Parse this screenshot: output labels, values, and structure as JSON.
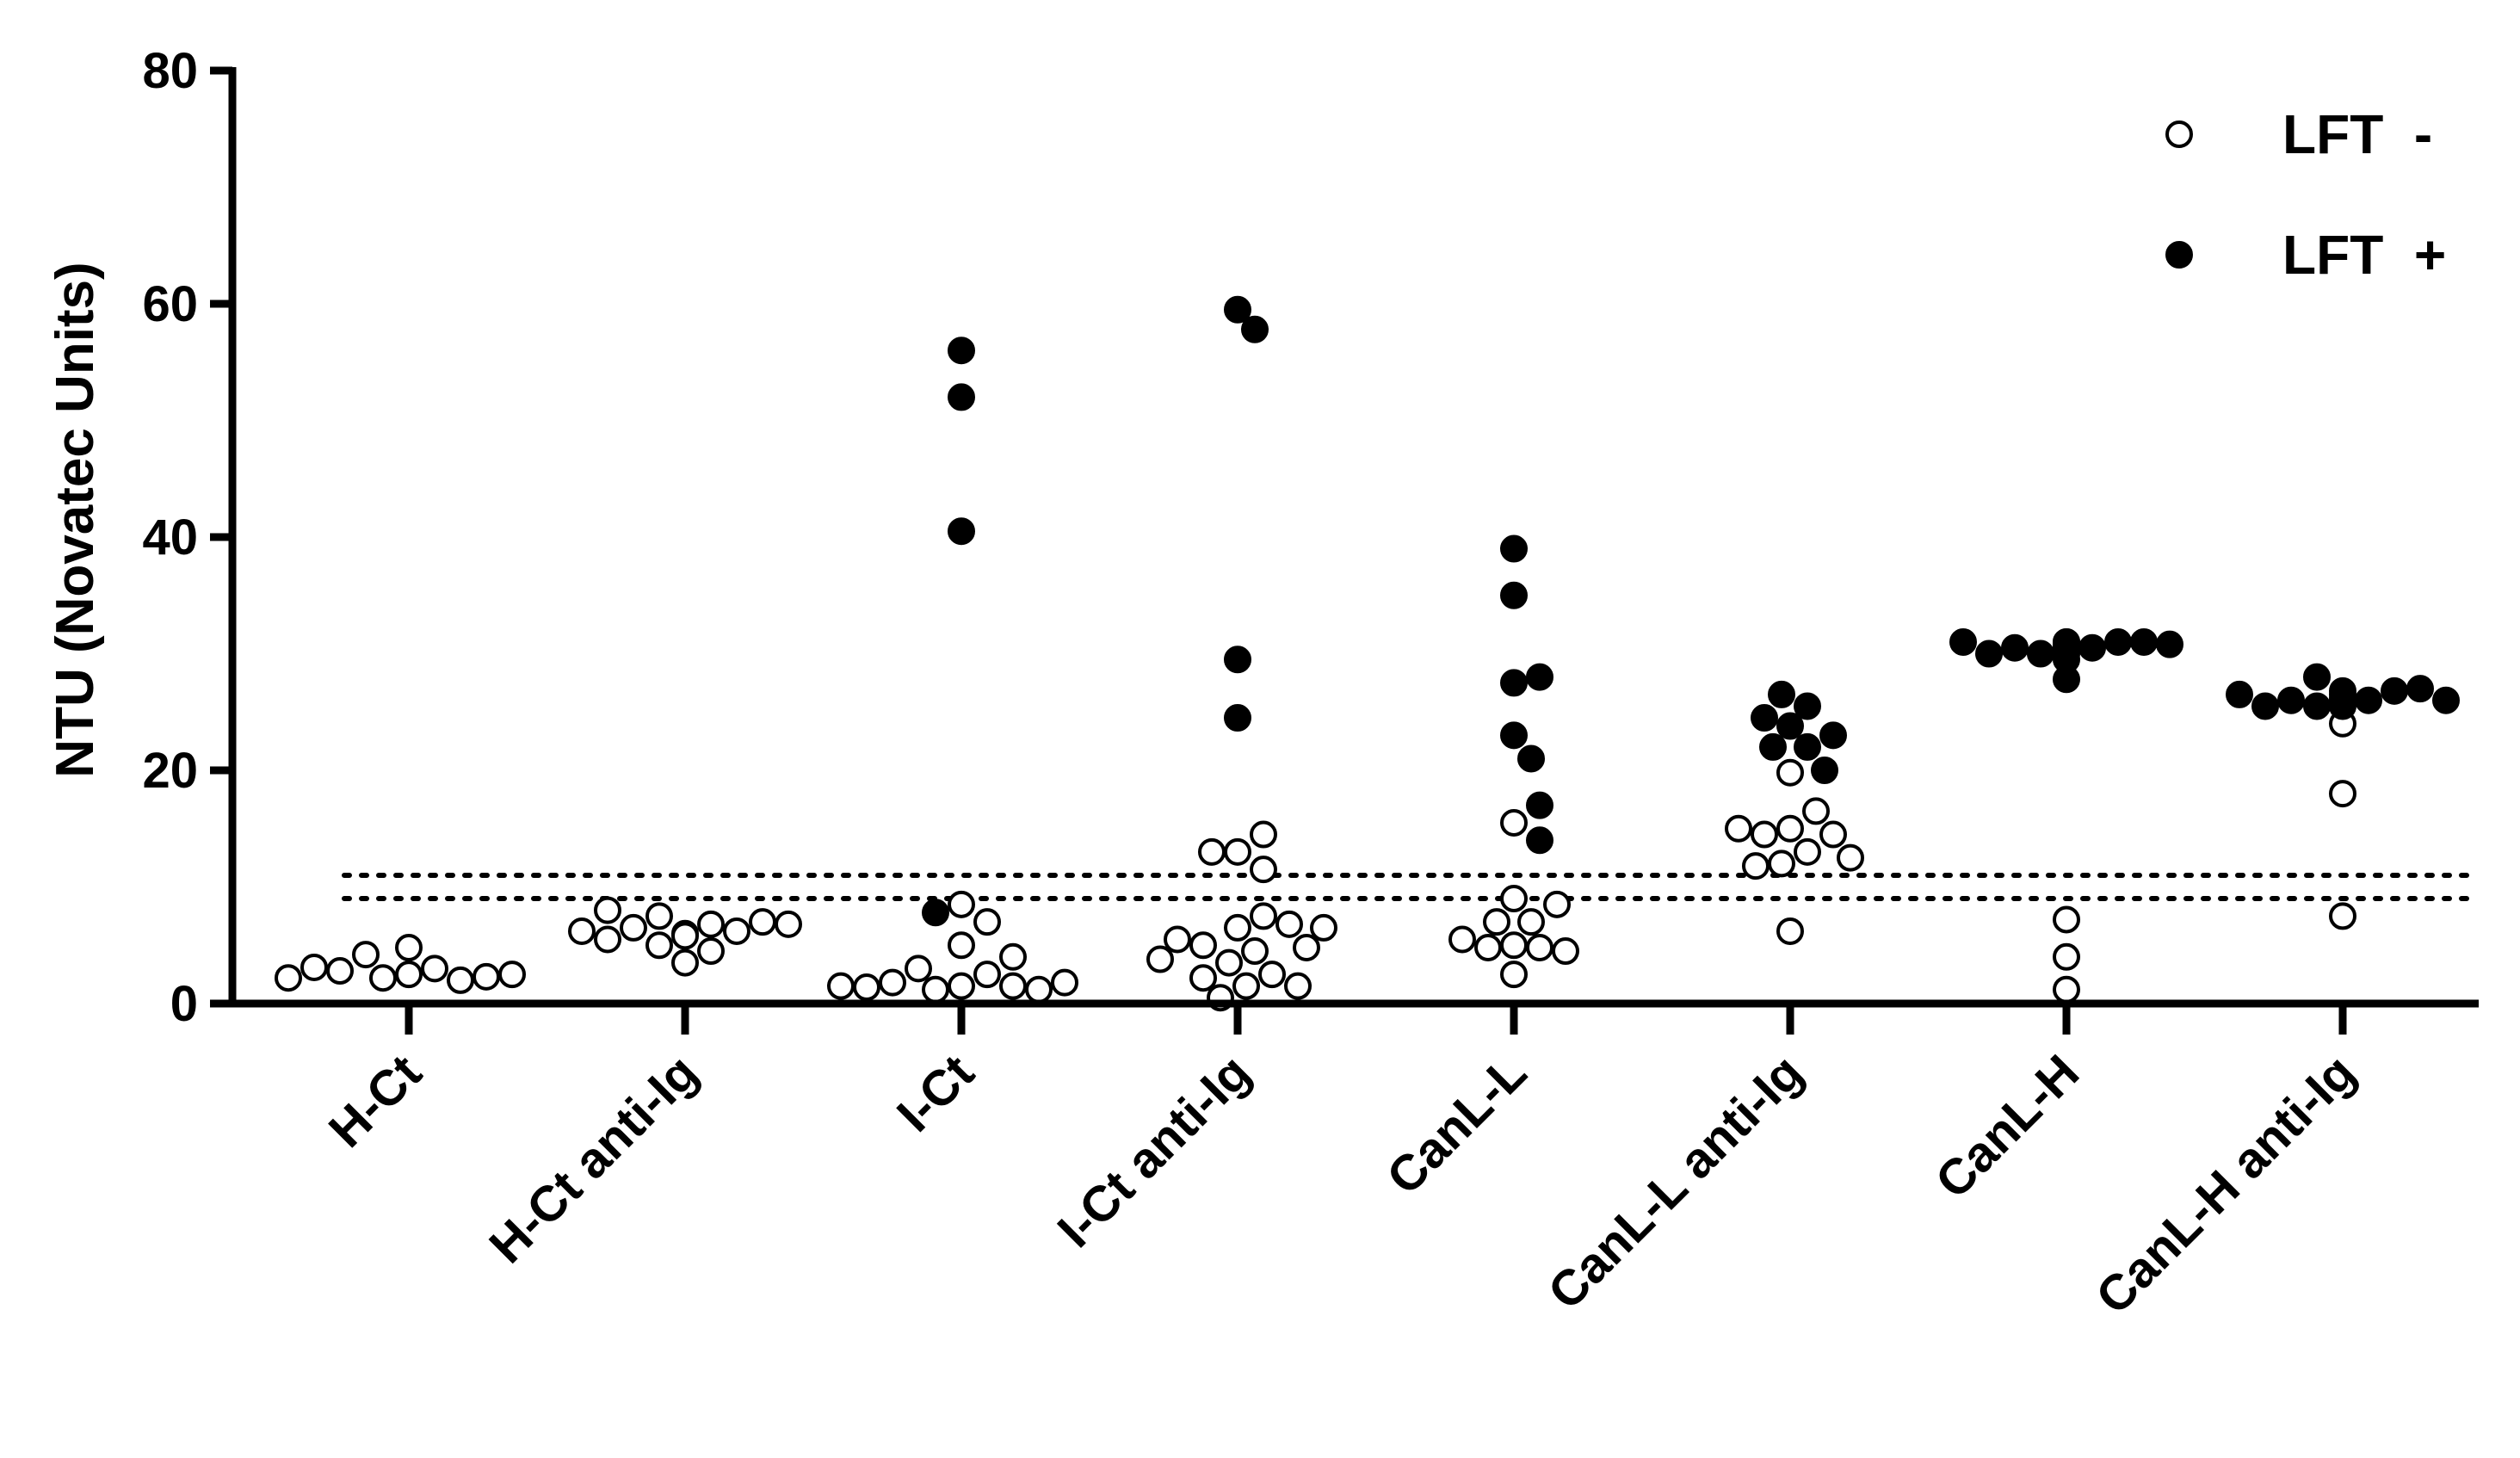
{
  "chart_data": {
    "type": "scatter",
    "ylabel": "NTU (Novatec Units)",
    "xlabel": "",
    "ylim": [
      0,
      80
    ],
    "yticks": [
      0,
      20,
      40,
      60,
      80
    ],
    "categories": [
      "H-Ct",
      "H-Ct anti-Ig",
      "I-Ct",
      "I-Ct anti-Ig",
      "CanL-L",
      "CanL-L anti-Ig",
      "CanL-H",
      "CanL-H anti-Ig"
    ],
    "reference_lines": [
      9,
      11
    ],
    "legend": {
      "placement": "top-right",
      "entries": [
        {
          "label": "LFT  -",
          "marker": "open-circle"
        },
        {
          "label": "LFT  +",
          "marker": "filled-circle"
        }
      ]
    },
    "series": [
      {
        "name": "LFT  -",
        "marker": "open-circle",
        "points": [
          [
            "H-Ct",
            2.5
          ],
          [
            "H-Ct",
            3.0
          ],
          [
            "H-Ct",
            2.2
          ],
          [
            "H-Ct",
            2.0
          ],
          [
            "H-Ct",
            4.8
          ],
          [
            "H-Ct",
            4.2
          ],
          [
            "H-Ct",
            2.8
          ],
          [
            "H-Ct",
            2.3
          ],
          [
            "H-Ct",
            3.1
          ],
          [
            "H-Ct",
            2.5
          ],
          [
            "H-Ct",
            2.2
          ],
          [
            "H-Ct anti-Ig",
            6.0
          ],
          [
            "H-Ct anti-Ig",
            6.8
          ],
          [
            "H-Ct anti-Ig",
            5.0
          ],
          [
            "H-Ct anti-Ig",
            7.5
          ],
          [
            "H-Ct anti-Ig",
            6.2
          ],
          [
            "H-Ct anti-Ig",
            3.5
          ],
          [
            "H-Ct anti-Ig",
            6.5
          ],
          [
            "H-Ct anti-Ig",
            7.0
          ],
          [
            "H-Ct anti-Ig",
            5.5
          ],
          [
            "H-Ct anti-Ig",
            6.8
          ],
          [
            "H-Ct anti-Ig",
            8.0
          ],
          [
            "H-Ct anti-Ig",
            4.5
          ],
          [
            "H-Ct anti-Ig",
            6.2
          ],
          [
            "H-Ct anti-Ig",
            5.8
          ],
          [
            "I-Ct",
            8.5
          ],
          [
            "I-Ct",
            7.0
          ],
          [
            "I-Ct",
            1.5
          ],
          [
            "I-Ct",
            2.5
          ],
          [
            "I-Ct",
            1.2
          ],
          [
            "I-Ct",
            1.5
          ],
          [
            "I-Ct",
            5.0
          ],
          [
            "I-Ct",
            3.0
          ],
          [
            "I-Ct",
            1.8
          ],
          [
            "I-Ct",
            1.2
          ],
          [
            "I-Ct",
            1.4
          ],
          [
            "I-Ct",
            4.0
          ],
          [
            "I-Ct",
            1.8
          ],
          [
            "I-Ct",
            1.5
          ],
          [
            "I-Ct anti-Ig",
            6.5
          ],
          [
            "I-Ct anti-Ig",
            4.5
          ],
          [
            "I-Ct anti-Ig",
            3.5
          ],
          [
            "I-Ct anti-Ig",
            13.0
          ],
          [
            "I-Ct anti-Ig",
            5.0
          ],
          [
            "I-Ct anti-Ig",
            2.5
          ],
          [
            "I-Ct anti-Ig",
            1.5
          ],
          [
            "I-Ct anti-Ig",
            7.5
          ],
          [
            "I-Ct anti-Ig",
            11.5
          ],
          [
            "I-Ct anti-Ig",
            0.5
          ],
          [
            "I-Ct anti-Ig",
            6.8
          ],
          [
            "I-Ct anti-Ig",
            2.2
          ],
          [
            "I-Ct anti-Ig",
            5.5
          ],
          [
            "I-Ct anti-Ig",
            14.5
          ],
          [
            "I-Ct anti-Ig",
            4.8
          ],
          [
            "I-Ct anti-Ig",
            1.5
          ],
          [
            "I-Ct anti-Ig",
            13.0
          ],
          [
            "I-Ct anti-Ig",
            3.8
          ],
          [
            "I-Ct anti-Ig",
            6.5
          ],
          [
            "CanL-L",
            9.0
          ],
          [
            "CanL-L",
            7.0
          ],
          [
            "CanL-L",
            5.0
          ],
          [
            "CanL-L",
            4.8
          ],
          [
            "CanL-L",
            7.0
          ],
          [
            "CanL-L",
            2.5
          ],
          [
            "CanL-L",
            4.8
          ],
          [
            "CanL-L",
            15.5
          ],
          [
            "CanL-L",
            8.5
          ],
          [
            "CanL-L",
            4.5
          ],
          [
            "CanL-L",
            5.5
          ],
          [
            "CanL-L anti-Ig",
            15.0
          ],
          [
            "CanL-L anti-Ig",
            13.0
          ],
          [
            "CanL-L anti-Ig",
            12.0
          ],
          [
            "CanL-L anti-Ig",
            19.8
          ],
          [
            "CanL-L anti-Ig",
            14.5
          ],
          [
            "CanL-L anti-Ig",
            6.2
          ],
          [
            "CanL-L anti-Ig",
            11.8
          ],
          [
            "CanL-L anti-Ig",
            16.5
          ],
          [
            "CanL-L anti-Ig",
            14.5
          ],
          [
            "CanL-L anti-Ig",
            12.5
          ],
          [
            "CanL-L anti-Ig",
            15.0
          ],
          [
            "CanL-H",
            7.2
          ],
          [
            "CanL-H",
            1.2
          ],
          [
            "CanL-H",
            4.0
          ],
          [
            "CanL-H anti-Ig",
            24.0
          ],
          [
            "CanL-H anti-Ig",
            18.0
          ],
          [
            "CanL-H anti-Ig",
            7.5
          ]
        ]
      },
      {
        "name": "LFT  +",
        "marker": "filled-circle",
        "points": [
          [
            "I-Ct",
            56.0
          ],
          [
            "I-Ct",
            52.0
          ],
          [
            "I-Ct",
            40.5
          ],
          [
            "I-Ct",
            7.8
          ],
          [
            "I-Ct anti-Ig",
            59.5
          ],
          [
            "I-Ct anti-Ig",
            57.8
          ],
          [
            "I-Ct anti-Ig",
            29.5
          ],
          [
            "I-Ct anti-Ig",
            24.5
          ],
          [
            "CanL-L",
            39.0
          ],
          [
            "CanL-L",
            35.0
          ],
          [
            "CanL-L",
            27.5
          ],
          [
            "CanL-L",
            28.0
          ],
          [
            "CanL-L",
            23.0
          ],
          [
            "CanL-L",
            21.0
          ],
          [
            "CanL-L",
            17.0
          ],
          [
            "CanL-L",
            14.0
          ],
          [
            "CanL-L anti-Ig",
            23.8
          ],
          [
            "CanL-L anti-Ig",
            22.0
          ],
          [
            "CanL-L anti-Ig",
            25.5
          ],
          [
            "CanL-L anti-Ig",
            24.5
          ],
          [
            "CanL-L anti-Ig",
            22.0
          ],
          [
            "CanL-L anti-Ig",
            26.5
          ],
          [
            "CanL-L anti-Ig",
            23.0
          ],
          [
            "CanL-L anti-Ig",
            20.0
          ],
          [
            "CanL-H",
            31.0
          ],
          [
            "CanL-H",
            30.5
          ],
          [
            "CanL-H",
            30.0
          ],
          [
            "CanL-H",
            31.0
          ],
          [
            "CanL-H",
            30.5
          ],
          [
            "CanL-H",
            31.0
          ],
          [
            "CanL-H",
            30.0
          ],
          [
            "CanL-H",
            30.8
          ],
          [
            "CanL-H",
            27.8
          ],
          [
            "CanL-H",
            31.0
          ],
          [
            "CanL-H",
            30.5
          ],
          [
            "CanL-H",
            30.0
          ],
          [
            "CanL-H",
            29.5
          ],
          [
            "CanL-H",
            30.8
          ],
          [
            "CanL-H",
            31.0
          ],
          [
            "CanL-H",
            30.5
          ],
          [
            "CanL-H anti-Ig",
            26.5
          ],
          [
            "CanL-H anti-Ig",
            26.0
          ],
          [
            "CanL-H anti-Ig",
            25.5
          ],
          [
            "CanL-H anti-Ig",
            26.8
          ],
          [
            "CanL-H anti-Ig",
            26.0
          ],
          [
            "CanL-H anti-Ig",
            27.0
          ],
          [
            "CanL-H anti-Ig",
            25.5
          ],
          [
            "CanL-H anti-Ig",
            26.0
          ],
          [
            "CanL-H anti-Ig",
            28.0
          ],
          [
            "CanL-H anti-Ig",
            26.5
          ],
          [
            "CanL-H anti-Ig",
            25.5
          ],
          [
            "CanL-H anti-Ig",
            26.0
          ],
          [
            "CanL-H anti-Ig",
            26.8
          ],
          [
            "CanL-H anti-Ig",
            25.8
          ],
          [
            "CanL-H anti-Ig",
            26.2
          ]
        ]
      }
    ]
  }
}
